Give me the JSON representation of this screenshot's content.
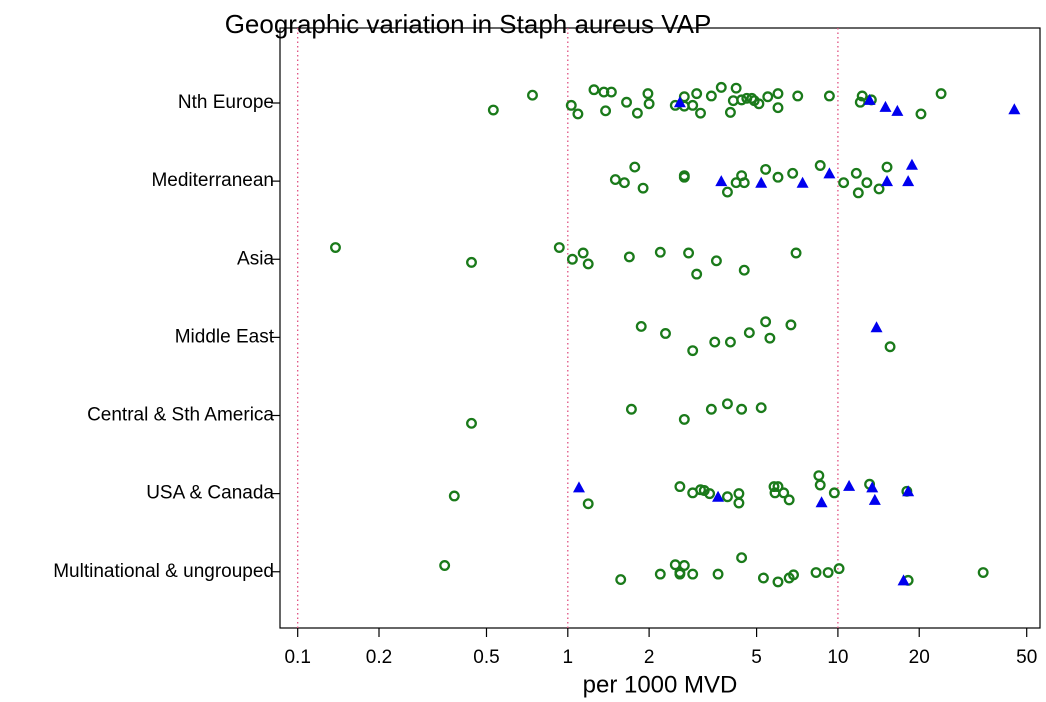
{
  "chart_data": {
    "type": "scatter",
    "title": "Geographic variation in Staph aureus VAP",
    "x_label": "per 1000 MVD",
    "xscale": "log",
    "xlim": [
      0.086,
      56
    ],
    "xticks": [
      0.1,
      0.2,
      0.5,
      1,
      2,
      5,
      10,
      20,
      50
    ],
    "xlines": [
      0.1,
      1,
      10
    ],
    "xlines_color": "#e05080",
    "ylim": [
      0.28,
      7.96
    ],
    "yticks": [
      {
        "value": 7,
        "label": "Nth Europe"
      },
      {
        "value": 6,
        "label": "Mediterranean"
      },
      {
        "value": 5,
        "label": "Asia"
      },
      {
        "value": 4,
        "label": "Middle East"
      },
      {
        "value": 3,
        "label": "Central & Sth America"
      },
      {
        "value": 2,
        "label": "USA & Canada"
      },
      {
        "value": 1,
        "label": "Multinational & ungrouped"
      }
    ],
    "series": [
      {
        "color": "#1a7a1a",
        "marker": "circle",
        "x": [
          0.53,
          0.74,
          1.03,
          1.09,
          1.25,
          1.36,
          1.45,
          1.38,
          1.65,
          1.81,
          1.98,
          2.0,
          2.5,
          2.7,
          2.7,
          2.9,
          3.0,
          3.1,
          3.4,
          3.7,
          4.2,
          4.1,
          4.0,
          4.4,
          4.6,
          4.8,
          4.9,
          5.1,
          5.5,
          6.0,
          6.0,
          7.1,
          9.3,
          12.3,
          12.1,
          13.3,
          20.3,
          24.1,
          1.5,
          1.62,
          1.77,
          1.9,
          2.7,
          2.7,
          3.9,
          4.2,
          4.4,
          4.5,
          5.4,
          6.0,
          6.8,
          8.6,
          10.5,
          11.7,
          11.9,
          12.8,
          14.2,
          15.2,
          0.138,
          0.44,
          0.93,
          1.04,
          1.14,
          1.19,
          1.69,
          2.2,
          2.8,
          3.0,
          3.55,
          4.5,
          7.0,
          1.87,
          2.3,
          2.9,
          3.5,
          4.0,
          4.7,
          5.4,
          5.6,
          6.7,
          15.6,
          0.44,
          1.72,
          2.7,
          3.4,
          3.9,
          4.4,
          5.2,
          0.38,
          1.19,
          2.6,
          2.9,
          3.1,
          3.2,
          3.35,
          3.9,
          4.3,
          4.3,
          5.8,
          6.0,
          5.85,
          6.3,
          6.6,
          8.5,
          8.6,
          9.7,
          13.1,
          18.0,
          0.35,
          1.57,
          2.2,
          2.5,
          2.7,
          2.6,
          2.6,
          2.9,
          3.6,
          4.4,
          5.3,
          6.0,
          6.6,
          6.85,
          8.3,
          9.2,
          10.1,
          18.2,
          34.5
        ],
        "y": [
          6.91,
          7.1,
          6.97,
          6.86,
          7.17,
          7.14,
          7.14,
          6.9,
          7.01,
          6.87,
          7.12,
          6.99,
          6.97,
          7.08,
          6.96,
          6.97,
          7.12,
          6.87,
          7.09,
          7.2,
          7.19,
          7.03,
          6.88,
          7.04,
          7.06,
          7.06,
          7.03,
          6.99,
          7.08,
          7.12,
          6.94,
          7.09,
          7.09,
          7.09,
          7.01,
          7.04,
          6.86,
          7.12,
          6.02,
          5.98,
          6.18,
          5.91,
          6.07,
          6.05,
          5.86,
          5.98,
          6.07,
          5.98,
          6.15,
          6.05,
          6.1,
          6.2,
          5.98,
          6.1,
          5.85,
          5.98,
          5.9,
          6.18,
          5.15,
          4.96,
          5.15,
          5.0,
          5.08,
          4.94,
          5.03,
          5.09,
          5.08,
          4.81,
          4.98,
          4.86,
          5.08,
          4.14,
          4.05,
          3.83,
          3.94,
          3.94,
          4.06,
          4.2,
          3.99,
          4.16,
          3.88,
          2.9,
          3.08,
          2.95,
          3.08,
          3.15,
          3.08,
          3.1,
          1.97,
          1.87,
          2.09,
          2.01,
          2.05,
          2.04,
          2.0,
          1.96,
          2.0,
          1.88,
          2.09,
          2.09,
          2.01,
          2.01,
          1.92,
          2.23,
          2.11,
          2.01,
          2.12,
          2.03,
          1.08,
          0.9,
          0.97,
          1.09,
          1.08,
          0.97,
          0.99,
          0.97,
          0.97,
          1.18,
          0.92,
          0.87,
          0.92,
          0.96,
          0.99,
          0.99,
          1.04,
          0.89,
          0.99
        ]
      },
      {
        "color": "#0000ee",
        "marker": "triangle",
        "x": [
          2.6,
          13.1,
          15.0,
          16.6,
          45,
          3.7,
          5.2,
          7.4,
          9.3,
          15.2,
          18.2,
          18.8,
          13.9,
          1.1,
          3.6,
          8.7,
          11.0,
          13.4,
          13.7,
          18.2,
          17.5
        ],
        "y": [
          7.01,
          7.04,
          6.95,
          6.9,
          6.92,
          6.0,
          5.98,
          5.98,
          6.1,
          6.0,
          6.0,
          6.21,
          4.13,
          2.08,
          1.96,
          1.89,
          2.1,
          2.08,
          1.92,
          2.03,
          0.89
        ]
      }
    ]
  }
}
